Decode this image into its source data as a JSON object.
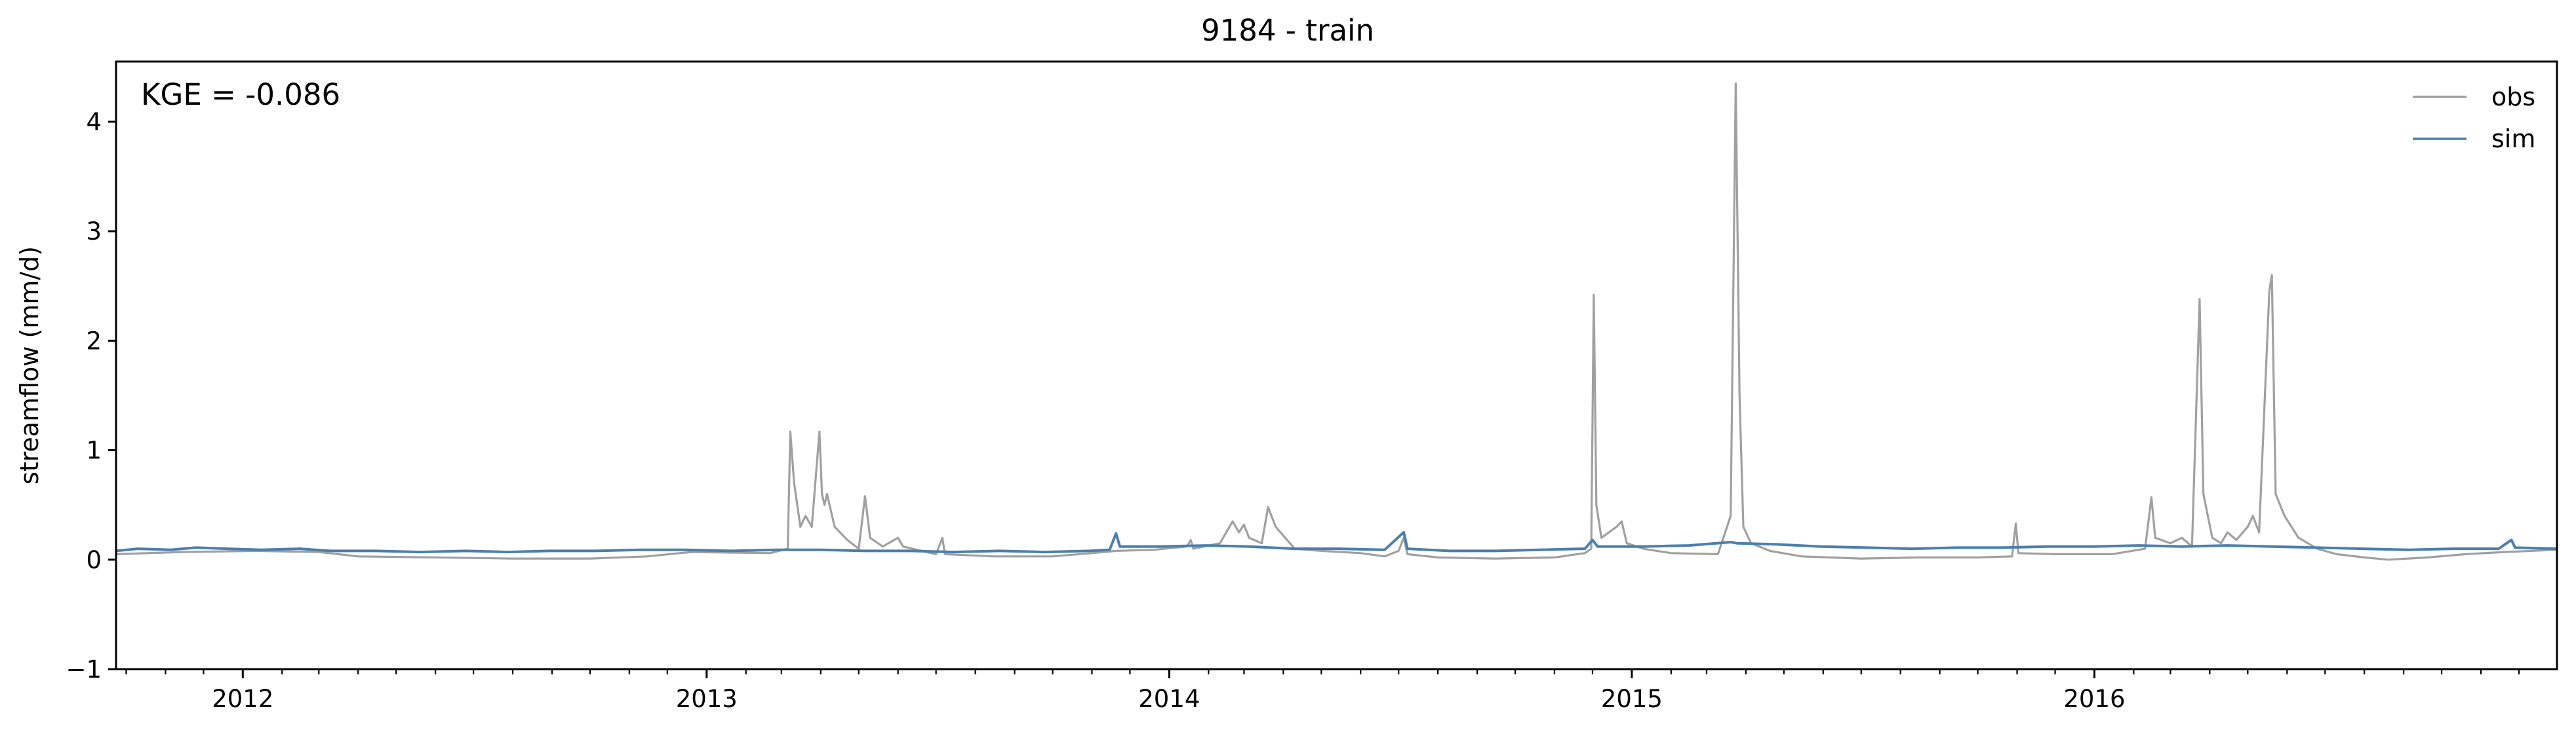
{
  "chart_data": {
    "type": "line",
    "title": "9184 - train",
    "xlabel": "",
    "ylabel": "streamflow (mm/d)",
    "annotation": "KGE = -0.086",
    "xlim": [
      "2011-09-23",
      "2016-12-31"
    ],
    "ylim": [
      -1,
      4.55
    ],
    "x_ticks": [
      {
        "date": "2012-01-01",
        "label": "2012"
      },
      {
        "date": "2013-01-01",
        "label": "2013"
      },
      {
        "date": "2014-01-01",
        "label": "2014"
      },
      {
        "date": "2015-01-01",
        "label": "2015"
      },
      {
        "date": "2016-01-01",
        "label": "2016"
      }
    ],
    "y_ticks": [
      -1,
      0,
      1,
      2,
      3,
      4
    ],
    "grid": false,
    "legend_position": "top-right",
    "series": [
      {
        "name": "obs",
        "color": "#a0a0a0",
        "points": [
          [
            "2011-09-23",
            0.05
          ],
          [
            "2011-11-15",
            0.07
          ],
          [
            "2012-01-10",
            0.08
          ],
          [
            "2012-03-01",
            0.07
          ],
          [
            "2012-04-01",
            0.03
          ],
          [
            "2012-06-01",
            0.02
          ],
          [
            "2012-08-01",
            0.01
          ],
          [
            "2012-10-01",
            0.01
          ],
          [
            "2012-11-15",
            0.03
          ],
          [
            "2012-12-20",
            0.07
          ],
          [
            "2013-02-20",
            0.06
          ],
          [
            "2013-03-06",
            0.1
          ],
          [
            "2013-03-08",
            1.17
          ],
          [
            "2013-03-11",
            0.7
          ],
          [
            "2013-03-16",
            0.3
          ],
          [
            "2013-03-20",
            0.4
          ],
          [
            "2013-03-25",
            0.3
          ],
          [
            "2013-03-31",
            1.17
          ],
          [
            "2013-04-02",
            0.6
          ],
          [
            "2013-04-04",
            0.5
          ],
          [
            "2013-04-06",
            0.6
          ],
          [
            "2013-04-12",
            0.3
          ],
          [
            "2013-04-22",
            0.18
          ],
          [
            "2013-05-01",
            0.1
          ],
          [
            "2013-05-06",
            0.58
          ],
          [
            "2013-05-10",
            0.2
          ],
          [
            "2013-05-20",
            0.12
          ],
          [
            "2013-06-01",
            0.2
          ],
          [
            "2013-06-05",
            0.12
          ],
          [
            "2013-06-20",
            0.08
          ],
          [
            "2013-07-01",
            0.05
          ],
          [
            "2013-07-06",
            0.2
          ],
          [
            "2013-07-08",
            0.05
          ],
          [
            "2013-08-15",
            0.03
          ],
          [
            "2013-10-01",
            0.03
          ],
          [
            "2013-11-01",
            0.06
          ],
          [
            "2013-11-20",
            0.08
          ],
          [
            "2013-12-20",
            0.09
          ],
          [
            "2014-01-15",
            0.12
          ],
          [
            "2014-01-18",
            0.18
          ],
          [
            "2014-01-20",
            0.1
          ],
          [
            "2014-02-10",
            0.15
          ],
          [
            "2014-02-20",
            0.35
          ],
          [
            "2014-02-25",
            0.25
          ],
          [
            "2014-03-01",
            0.32
          ],
          [
            "2014-03-05",
            0.2
          ],
          [
            "2014-03-15",
            0.15
          ],
          [
            "2014-03-20",
            0.48
          ],
          [
            "2014-03-26",
            0.3
          ],
          [
            "2014-04-10",
            0.1
          ],
          [
            "2014-05-01",
            0.08
          ],
          [
            "2014-06-01",
            0.06
          ],
          [
            "2014-06-20",
            0.03
          ],
          [
            "2014-07-01",
            0.08
          ],
          [
            "2014-07-05",
            0.2
          ],
          [
            "2014-07-08",
            0.05
          ],
          [
            "2014-08-01",
            0.02
          ],
          [
            "2014-09-15",
            0.01
          ],
          [
            "2014-11-01",
            0.02
          ],
          [
            "2014-11-25",
            0.06
          ],
          [
            "2014-11-30",
            0.1
          ],
          [
            "2014-12-02",
            2.42
          ],
          [
            "2014-12-04",
            0.5
          ],
          [
            "2014-12-08",
            0.2
          ],
          [
            "2014-12-20",
            0.3
          ],
          [
            "2014-12-24",
            0.35
          ],
          [
            "2014-12-28",
            0.15
          ],
          [
            "2015-01-10",
            0.1
          ],
          [
            "2015-02-01",
            0.06
          ],
          [
            "2015-03-10",
            0.05
          ],
          [
            "2015-03-20",
            0.4
          ],
          [
            "2015-03-24",
            4.35
          ],
          [
            "2015-03-27",
            1.5
          ],
          [
            "2015-03-30",
            0.3
          ],
          [
            "2015-04-05",
            0.15
          ],
          [
            "2015-04-20",
            0.08
          ],
          [
            "2015-05-15",
            0.03
          ],
          [
            "2015-07-01",
            0.01
          ],
          [
            "2015-08-15",
            0.02
          ],
          [
            "2015-10-01",
            0.02
          ],
          [
            "2015-10-28",
            0.03
          ],
          [
            "2015-10-31",
            0.33
          ],
          [
            "2015-11-02",
            0.06
          ],
          [
            "2015-12-01",
            0.05
          ],
          [
            "2016-01-15",
            0.05
          ],
          [
            "2016-02-10",
            0.1
          ],
          [
            "2016-02-15",
            0.57
          ],
          [
            "2016-02-18",
            0.2
          ],
          [
            "2016-03-01",
            0.15
          ],
          [
            "2016-03-10",
            0.2
          ],
          [
            "2016-03-18",
            0.12
          ],
          [
            "2016-03-24",
            2.38
          ],
          [
            "2016-03-27",
            0.6
          ],
          [
            "2016-04-03",
            0.2
          ],
          [
            "2016-04-10",
            0.15
          ],
          [
            "2016-04-15",
            0.25
          ],
          [
            "2016-04-22",
            0.18
          ],
          [
            "2016-05-01",
            0.3
          ],
          [
            "2016-05-05",
            0.4
          ],
          [
            "2016-05-10",
            0.25
          ],
          [
            "2016-05-18",
            2.45
          ],
          [
            "2016-05-20",
            2.6
          ],
          [
            "2016-05-23",
            0.6
          ],
          [
            "2016-05-30",
            0.4
          ],
          [
            "2016-06-10",
            0.2
          ],
          [
            "2016-06-25",
            0.1
          ],
          [
            "2016-07-10",
            0.05
          ],
          [
            "2016-08-01",
            0.02
          ],
          [
            "2016-08-20",
            0.0
          ],
          [
            "2016-09-20",
            0.02
          ],
          [
            "2016-10-20",
            0.05
          ],
          [
            "2016-11-20",
            0.07
          ],
          [
            "2016-12-31",
            0.09
          ]
        ]
      },
      {
        "name": "sim",
        "color": "#4a7fae",
        "points": [
          [
            "2011-09-23",
            0.08
          ],
          [
            "2011-10-10",
            0.1
          ],
          [
            "2011-11-05",
            0.09
          ],
          [
            "2011-11-25",
            0.11
          ],
          [
            "2011-12-20",
            0.1
          ],
          [
            "2012-01-15",
            0.09
          ],
          [
            "2012-02-15",
            0.1
          ],
          [
            "2012-03-10",
            0.08
          ],
          [
            "2012-04-15",
            0.08
          ],
          [
            "2012-05-20",
            0.07
          ],
          [
            "2012-06-25",
            0.08
          ],
          [
            "2012-07-28",
            0.07
          ],
          [
            "2012-08-30",
            0.08
          ],
          [
            "2012-10-05",
            0.08
          ],
          [
            "2012-11-10",
            0.09
          ],
          [
            "2012-12-15",
            0.09
          ],
          [
            "2013-01-20",
            0.08
          ],
          [
            "2013-02-25",
            0.09
          ],
          [
            "2013-04-01",
            0.09
          ],
          [
            "2013-05-05",
            0.08
          ],
          [
            "2013-06-10",
            0.08
          ],
          [
            "2013-07-15",
            0.07
          ],
          [
            "2013-08-20",
            0.08
          ],
          [
            "2013-09-25",
            0.07
          ],
          [
            "2013-10-30",
            0.08
          ],
          [
            "2013-11-15",
            0.09
          ],
          [
            "2013-11-20",
            0.24
          ],
          [
            "2013-11-23",
            0.12
          ],
          [
            "2013-12-25",
            0.12
          ],
          [
            "2014-01-30",
            0.13
          ],
          [
            "2014-03-05",
            0.12
          ],
          [
            "2014-04-10",
            0.1
          ],
          [
            "2014-05-15",
            0.1
          ],
          [
            "2014-06-20",
            0.09
          ],
          [
            "2014-07-05",
            0.25
          ],
          [
            "2014-07-08",
            0.1
          ],
          [
            "2014-08-10",
            0.08
          ],
          [
            "2014-09-15",
            0.08
          ],
          [
            "2014-10-20",
            0.09
          ],
          [
            "2014-11-25",
            0.1
          ],
          [
            "2014-12-01",
            0.18
          ],
          [
            "2014-12-05",
            0.12
          ],
          [
            "2015-01-10",
            0.12
          ],
          [
            "2015-02-15",
            0.13
          ],
          [
            "2015-03-20",
            0.16
          ],
          [
            "2015-03-25",
            0.15
          ],
          [
            "2015-04-25",
            0.14
          ],
          [
            "2015-05-30",
            0.12
          ],
          [
            "2015-07-05",
            0.11
          ],
          [
            "2015-08-10",
            0.1
          ],
          [
            "2015-09-15",
            0.11
          ],
          [
            "2015-10-20",
            0.11
          ],
          [
            "2015-11-25",
            0.12
          ],
          [
            "2016-01-01",
            0.12
          ],
          [
            "2016-02-05",
            0.13
          ],
          [
            "2016-03-10",
            0.12
          ],
          [
            "2016-04-15",
            0.13
          ],
          [
            "2016-05-20",
            0.12
          ],
          [
            "2016-06-25",
            0.11
          ],
          [
            "2016-07-30",
            0.1
          ],
          [
            "2016-09-05",
            0.09
          ],
          [
            "2016-10-10",
            0.1
          ],
          [
            "2016-11-15",
            0.1
          ],
          [
            "2016-11-25",
            0.18
          ],
          [
            "2016-11-28",
            0.11
          ],
          [
            "2016-12-31",
            0.1
          ]
        ]
      }
    ]
  }
}
